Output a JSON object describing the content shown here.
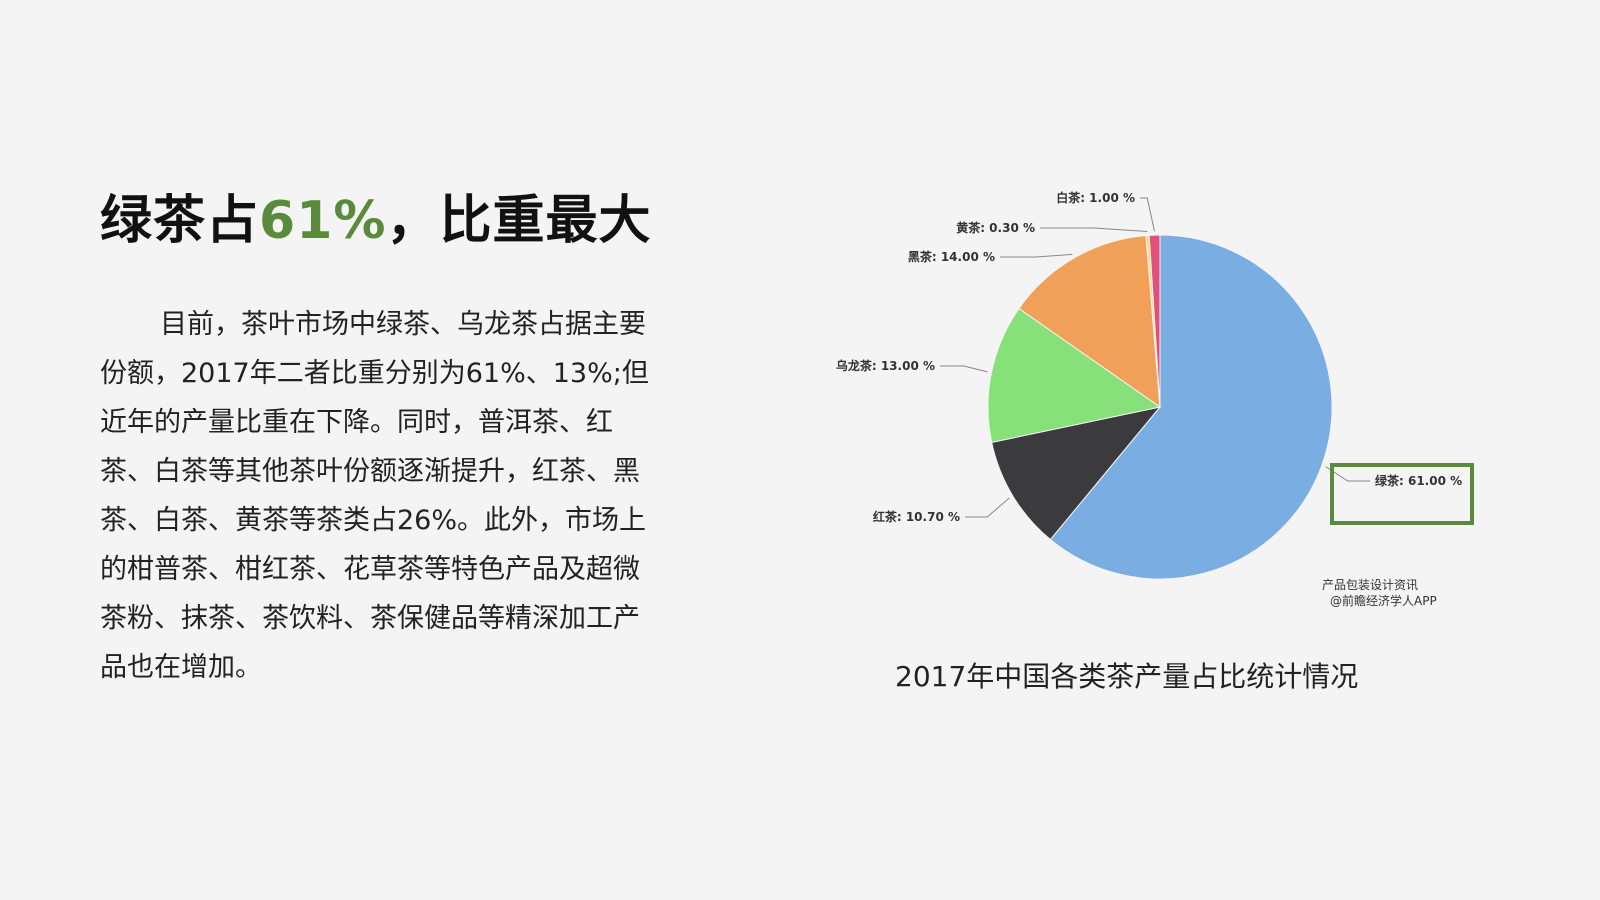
{
  "title": {
    "pre": "绿茶占",
    "highlight": "61%",
    "post": "，比重最大"
  },
  "body": "目前，茶叶市场中绿茶、乌龙茶占据主要份额，2017年二者比重分别为61%、13%;但近年的产量比重在下降。同时，普洱茶、红茶、白茶等其他茶叶份额逐渐提升，红茶、黑茶、白茶、黄茶等茶类占26%。此外，市场上的柑普茶、柑红茶、花草茶等特色产品及超微茶粉、抹茶、茶饮料、茶保健品等精深加工产品也在增加。",
  "caption": "2017年中国各类茶产量占比统计情况",
  "watermark": {
    "line1": "产品包装设计资讯",
    "line2": "@前瞻经济学人APP"
  },
  "chart_data": {
    "type": "pie",
    "title": "",
    "categories": [
      "绿茶",
      "红茶",
      "乌龙茶",
      "黑茶",
      "黄茶",
      "白茶"
    ],
    "values": [
      61.0,
      10.7,
      13.0,
      14.0,
      0.3,
      1.0
    ],
    "labels": [
      "绿茶: 61.00 %",
      "红茶: 10.70 %",
      "乌龙茶: 13.00 %",
      "黑茶: 14.00 %",
      "黄茶: 0.30 %",
      "白茶: 1.00 %"
    ],
    "colors": [
      "#7aaee2",
      "#3b3b3d",
      "#88e07a",
      "#f0a058",
      "#f3e07a",
      "#e0507a"
    ],
    "highlight": "绿茶",
    "highlight_color": "#5a8a3c"
  }
}
